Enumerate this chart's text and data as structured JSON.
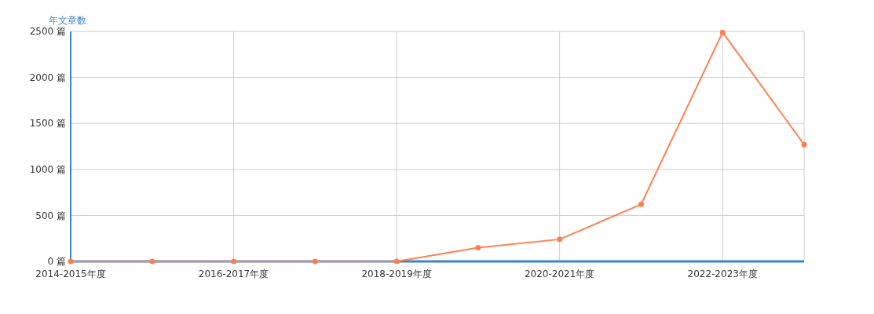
{
  "chart_data": {
    "type": "line",
    "ylabel": "年文章数",
    "categories": [
      "2014-2015年度",
      null,
      "2016-2017年度",
      null,
      "2018-2019年度",
      null,
      "2020-2021年度",
      null,
      "2022-2023年度",
      null
    ],
    "series": [
      {
        "color": "#ff7f50",
        "values": [
          0,
          0,
          0,
          0,
          0,
          150,
          240,
          620,
          2490,
          1270
        ]
      }
    ],
    "ylim": [
      0,
      2500
    ],
    "yticks": [
      {
        "value": 0,
        "label": "0 篇"
      },
      {
        "value": 500,
        "label": "500 篇"
      },
      {
        "value": 1000,
        "label": "1000 篇"
      },
      {
        "value": 1500,
        "label": "1500 篇"
      },
      {
        "value": 2000,
        "label": "2000 篇"
      },
      {
        "value": 2500,
        "label": "2500 篇"
      }
    ],
    "grid": true,
    "marker": "circle",
    "line_style": "solid"
  }
}
